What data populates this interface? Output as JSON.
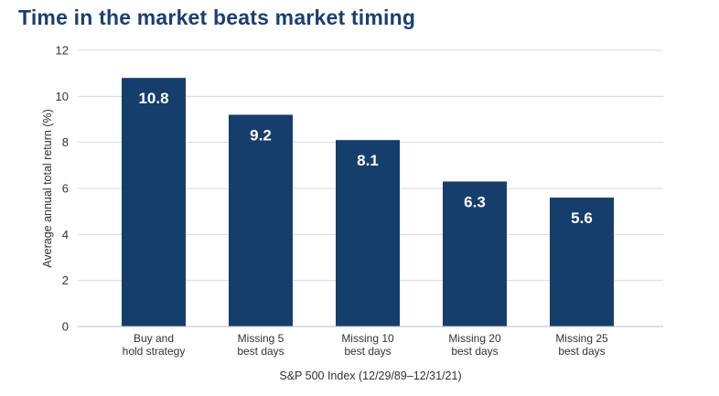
{
  "chart_data": {
    "type": "bar",
    "title": "Time in the market beats market timing",
    "xlabel": "S&P 500 Index (12/29/89–12/31/21)",
    "ylabel": "Average annual total return (%)",
    "ylim": [
      0,
      12
    ],
    "yticks": [
      0,
      2,
      4,
      6,
      8,
      10,
      12
    ],
    "grid": true,
    "categories": [
      [
        "Buy and",
        "hold strategy"
      ],
      [
        "Missing 5",
        "best days"
      ],
      [
        "Missing 10",
        "best days"
      ],
      [
        "Missing 20",
        "best days"
      ],
      [
        "Missing 25",
        "best days"
      ]
    ],
    "values": [
      10.8,
      9.2,
      8.1,
      6.3,
      5.6
    ],
    "data_labels": [
      "10.8",
      "9.2",
      "8.1",
      "6.3",
      "5.6"
    ],
    "bar_color": "#163e6c"
  }
}
